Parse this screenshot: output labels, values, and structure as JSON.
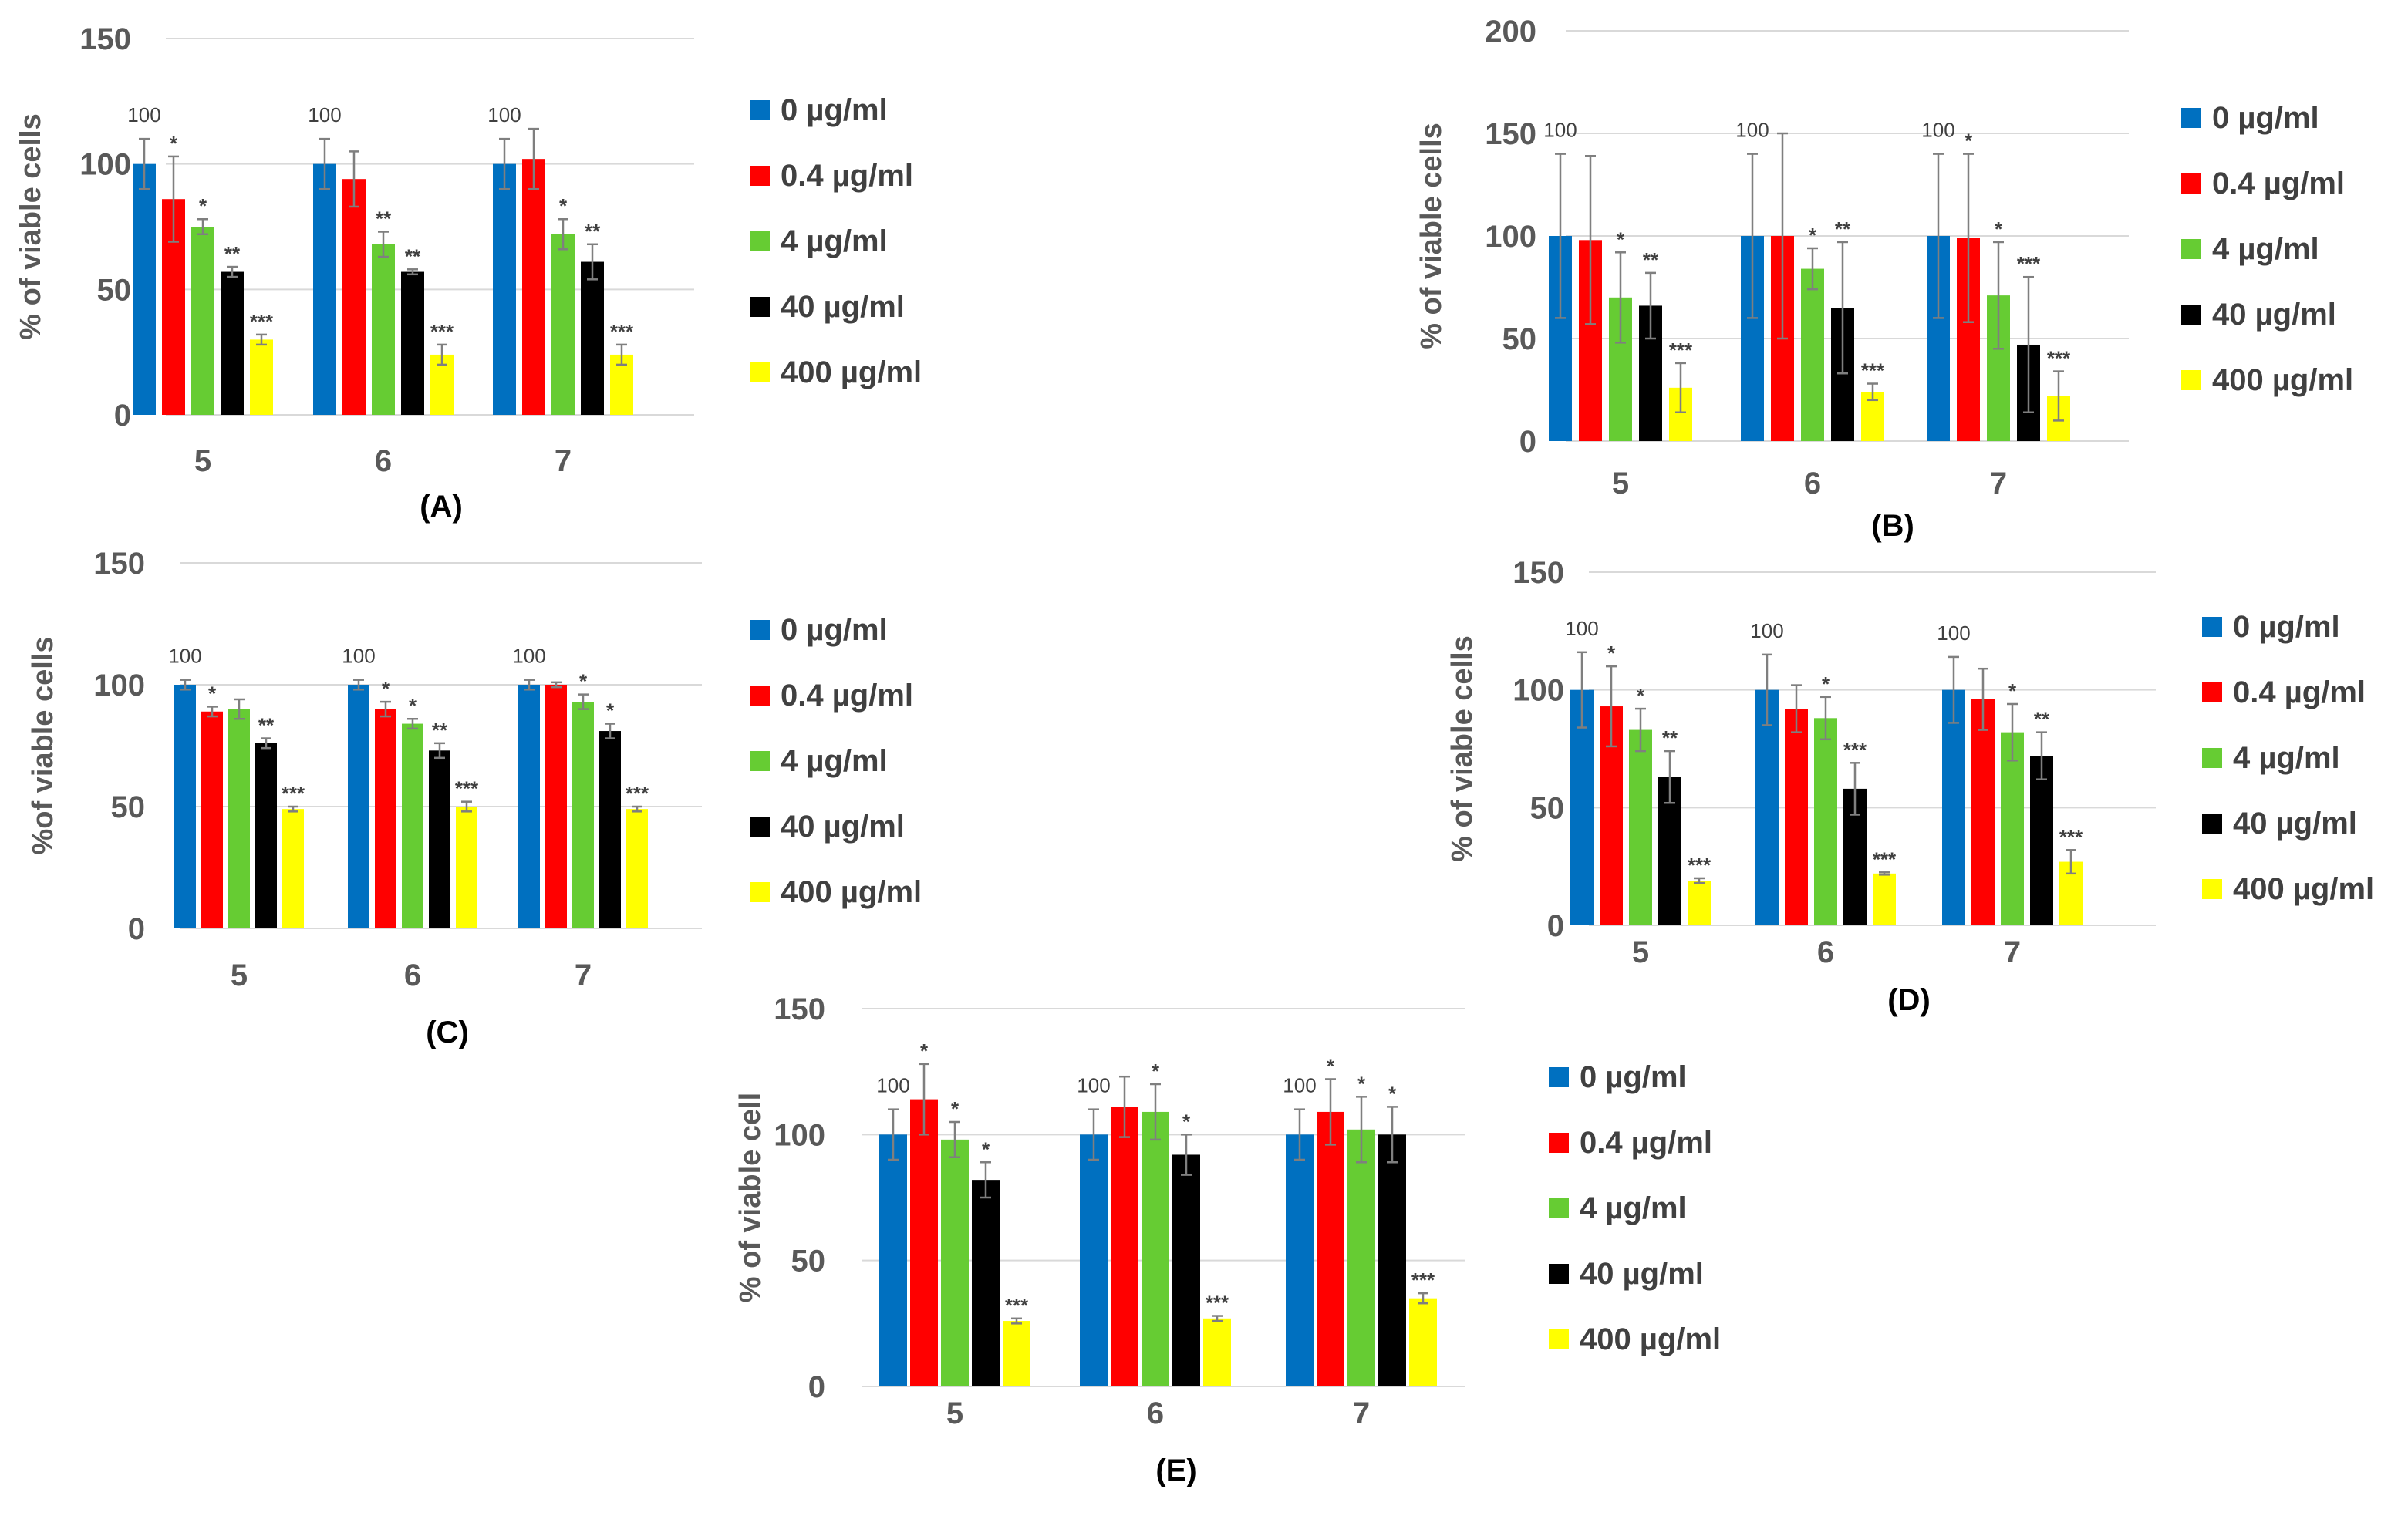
{
  "colors": [
    "#0070C0",
    "#FF0000",
    "#66CC33",
    "#000000",
    "#FFFF00"
  ],
  "chart_data": [
    {
      "type": "bar",
      "panel_label": "(A)",
      "ylabel": "% of viable cells",
      "categories": [
        "5",
        "6",
        "7"
      ],
      "ylim": [
        0,
        150
      ],
      "yticks": [
        "0",
        "50",
        "100",
        "150"
      ],
      "series": [
        {
          "name": "0 µg/ml",
          "values": [
            100,
            100,
            100
          ],
          "errors": [
            10,
            10,
            10
          ],
          "marks": [
            "",
            "",
            ""
          ]
        },
        {
          "name": "0.4 µg/ml",
          "values": [
            86,
            94,
            102
          ],
          "errors": [
            17,
            11,
            12
          ],
          "marks": [
            "*",
            "",
            ""
          ]
        },
        {
          "name": "4 µg/ml",
          "values": [
            75,
            68,
            72
          ],
          "errors": [
            3,
            5,
            6
          ],
          "marks": [
            "*",
            "**",
            "*"
          ]
        },
        {
          "name": "40 µg/ml",
          "values": [
            57,
            57,
            61
          ],
          "errors": [
            2,
            1,
            7
          ],
          "marks": [
            "**",
            "**",
            "**"
          ]
        },
        {
          "name": "400 µg/ml",
          "values": [
            30,
            24,
            24
          ],
          "errors": [
            2,
            4,
            4
          ],
          "marks": [
            "***",
            "***",
            "***"
          ]
        }
      ],
      "baseline_labels": [
        "100",
        "100",
        "100"
      ]
    },
    {
      "type": "bar",
      "panel_label": "(B)",
      "ylabel": "% of viable cells",
      "categories": [
        "5",
        "6",
        "7"
      ],
      "ylim": [
        0,
        200
      ],
      "yticks": [
        "0",
        "50",
        "100",
        "150",
        "200"
      ],
      "series": [
        {
          "name": "0 µg/ml",
          "values": [
            100,
            100,
            100
          ],
          "errors": [
            40,
            40,
            40
          ],
          "marks": [
            "",
            "",
            ""
          ]
        },
        {
          "name": "0.4 µg/ml",
          "values": [
            98,
            100,
            99
          ],
          "errors": [
            41,
            50,
            41
          ],
          "marks": [
            "",
            "",
            "*"
          ]
        },
        {
          "name": "4 µg/ml",
          "values": [
            70,
            84,
            71
          ],
          "errors": [
            22,
            10,
            26
          ],
          "marks": [
            "*",
            "*",
            "*"
          ]
        },
        {
          "name": "40 µg/ml",
          "values": [
            66,
            65,
            47
          ],
          "errors": [
            16,
            32,
            33
          ],
          "marks": [
            "**",
            "**",
            "***"
          ]
        },
        {
          "name": "400 µg/ml",
          "values": [
            26,
            24,
            22
          ],
          "errors": [
            12,
            4,
            12
          ],
          "marks": [
            "***",
            "***",
            "***"
          ]
        }
      ],
      "baseline_labels": [
        "100",
        "100",
        "100"
      ]
    },
    {
      "type": "bar",
      "panel_label": "(C)",
      "ylabel": "%of viable cells",
      "categories": [
        "5",
        "6",
        "7"
      ],
      "ylim": [
        0,
        150
      ],
      "yticks": [
        "0",
        "50",
        "100",
        "150"
      ],
      "series": [
        {
          "name": "0 µg/ml",
          "values": [
            100,
            100,
            100
          ],
          "errors": [
            2,
            2,
            2
          ],
          "marks": [
            "",
            "",
            ""
          ]
        },
        {
          "name": "0.4 µg/ml",
          "values": [
            89,
            90,
            100
          ],
          "errors": [
            2,
            3,
            1
          ],
          "marks": [
            "*",
            "*",
            ""
          ]
        },
        {
          "name": "4 µg/ml",
          "values": [
            90,
            84,
            93
          ],
          "errors": [
            4,
            2,
            3
          ],
          "marks": [
            "",
            "*",
            "*"
          ]
        },
        {
          "name": "40 µg/ml",
          "values": [
            76,
            73,
            81
          ],
          "errors": [
            2,
            3,
            3
          ],
          "marks": [
            "**",
            "**",
            "*"
          ]
        },
        {
          "name": "400 µg/ml",
          "values": [
            49,
            50,
            49
          ],
          "errors": [
            1,
            2,
            1
          ],
          "marks": [
            "***",
            "***",
            "***"
          ]
        }
      ],
      "baseline_labels": [
        "100",
        "100",
        "100"
      ]
    },
    {
      "type": "bar",
      "panel_label": "(D)",
      "ylabel": "% of viable cells",
      "categories": [
        "5",
        "6",
        "7"
      ],
      "ylim": [
        0,
        150
      ],
      "yticks": [
        "0",
        "50",
        "100",
        "150"
      ],
      "series": [
        {
          "name": "0 µg/ml",
          "values": [
            100,
            100,
            100
          ],
          "errors": [
            16,
            15,
            14
          ],
          "marks": [
            "",
            "",
            ""
          ]
        },
        {
          "name": "0.4  µg/ml",
          "values": [
            93,
            92,
            96
          ],
          "errors": [
            17,
            10,
            13
          ],
          "marks": [
            "*",
            "",
            ""
          ]
        },
        {
          "name": "4 µg/ml",
          "values": [
            83,
            88,
            82
          ],
          "errors": [
            9,
            9,
            12
          ],
          "marks": [
            "*",
            "*",
            "*"
          ]
        },
        {
          "name": "40 µg/ml",
          "values": [
            63,
            58,
            72
          ],
          "errors": [
            11,
            11,
            10
          ],
          "marks": [
            "**",
            "***",
            "**"
          ]
        },
        {
          "name": "400 µg/ml",
          "values": [
            19,
            22,
            27
          ],
          "errors": [
            1,
            0.5,
            5
          ],
          "marks": [
            "***",
            "***",
            "***"
          ]
        }
      ],
      "baseline_labels": [
        "100",
        "100",
        "100"
      ]
    },
    {
      "type": "bar",
      "panel_label": "(E)",
      "ylabel": "% of viable cell",
      "categories": [
        "5",
        "6",
        "7"
      ],
      "ylim": [
        0,
        150
      ],
      "yticks": [
        "0",
        "50",
        "100",
        "150"
      ],
      "series": [
        {
          "name": "0 µg/ml",
          "values": [
            100,
            100,
            100
          ],
          "errors": [
            10,
            10,
            10
          ],
          "marks": [
            "",
            "",
            ""
          ]
        },
        {
          "name": "0.4  µg/ml",
          "values": [
            114,
            111,
            109
          ],
          "errors": [
            14,
            12,
            13
          ],
          "marks": [
            "*",
            "",
            "*"
          ]
        },
        {
          "name": "4 µg/ml",
          "values": [
            98,
            109,
            102
          ],
          "errors": [
            7,
            11,
            13
          ],
          "marks": [
            "*",
            "*",
            "*"
          ]
        },
        {
          "name": "40 µg/ml",
          "values": [
            82,
            92,
            100
          ],
          "errors": [
            7,
            8,
            11
          ],
          "marks": [
            "*",
            "*",
            "*"
          ]
        },
        {
          "name": "400 µg/ml",
          "values": [
            26,
            27,
            35
          ],
          "errors": [
            1,
            1,
            2
          ],
          "marks": [
            "***",
            "***",
            "***"
          ]
        }
      ],
      "baseline_labels": [
        "100",
        "100",
        "100"
      ]
    }
  ]
}
